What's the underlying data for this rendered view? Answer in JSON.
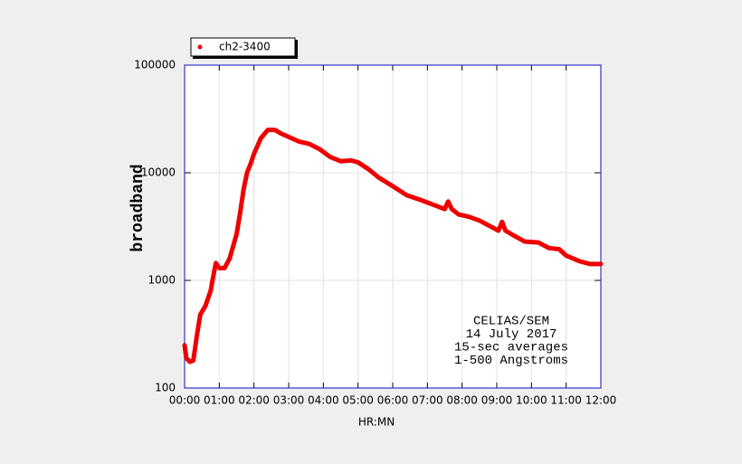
{
  "chart_data": {
    "type": "line",
    "x_label": "HR:MN",
    "y_label": "broadband",
    "annotation": [
      "CELIAS/SEM",
      "14 July 2017",
      "15-sec averages",
      "1-500 Angstroms"
    ],
    "log_y": true,
    "grid": true,
    "legend": "top-left",
    "xlim": [
      0,
      12
    ],
    "xticks": [
      {
        "value": 0,
        "label": "00:00"
      },
      {
        "value": 1,
        "label": "01:00"
      },
      {
        "value": 2,
        "label": "02:00"
      },
      {
        "value": 3,
        "label": "03:00"
      },
      {
        "value": 4,
        "label": "04:00"
      },
      {
        "value": 5,
        "label": "05:00"
      },
      {
        "value": 6,
        "label": "06:00"
      },
      {
        "value": 7,
        "label": "07:00"
      },
      {
        "value": 8,
        "label": "08:00"
      },
      {
        "value": 9,
        "label": "09:00"
      },
      {
        "value": 10,
        "label": "10:00"
      },
      {
        "value": 11,
        "label": "11:00"
      },
      {
        "value": 12,
        "label": "12:00"
      }
    ],
    "ylim": [
      100,
      100000
    ],
    "yticks": [
      100,
      1000,
      10000,
      100000
    ],
    "x": [
      0,
      0.05,
      0.15,
      0.25,
      0.35,
      0.45,
      0.6,
      0.75,
      0.85,
      0.9,
      1.0,
      1.15,
      1.3,
      1.5,
      1.6,
      1.7,
      1.8,
      1.9,
      2.0,
      2.2,
      2.4,
      2.6,
      2.8,
      3.0,
      3.3,
      3.6,
      3.9,
      4.2,
      4.5,
      4.8,
      5.0,
      5.3,
      5.6,
      6.0,
      6.4,
      6.8,
      7.2,
      7.5,
      7.6,
      7.7,
      7.9,
      8.2,
      8.5,
      8.8,
      9.05,
      9.15,
      9.25,
      9.5,
      9.8,
      10.2,
      10.5,
      10.8,
      11.0,
      11.4,
      11.7,
      12.0
    ],
    "series": [
      {
        "name": "ch2-3400",
        "color": "#ee0000",
        "values": [
          250,
          190,
          175,
          180,
          300,
          480,
          580,
          800,
          1200,
          1450,
          1300,
          1300,
          1600,
          2700,
          4200,
          7000,
          10000,
          12000,
          15000,
          21000,
          25000,
          25000,
          23000,
          21500,
          19500,
          18500,
          16500,
          14000,
          12800,
          13000,
          12500,
          10800,
          9000,
          7500,
          6200,
          5600,
          5000,
          4600,
          5400,
          4600,
          4100,
          3900,
          3600,
          3200,
          2900,
          3500,
          2900,
          2600,
          2300,
          2250,
          2000,
          1950,
          1700,
          1500,
          1420,
          1420
        ]
      }
    ]
  }
}
